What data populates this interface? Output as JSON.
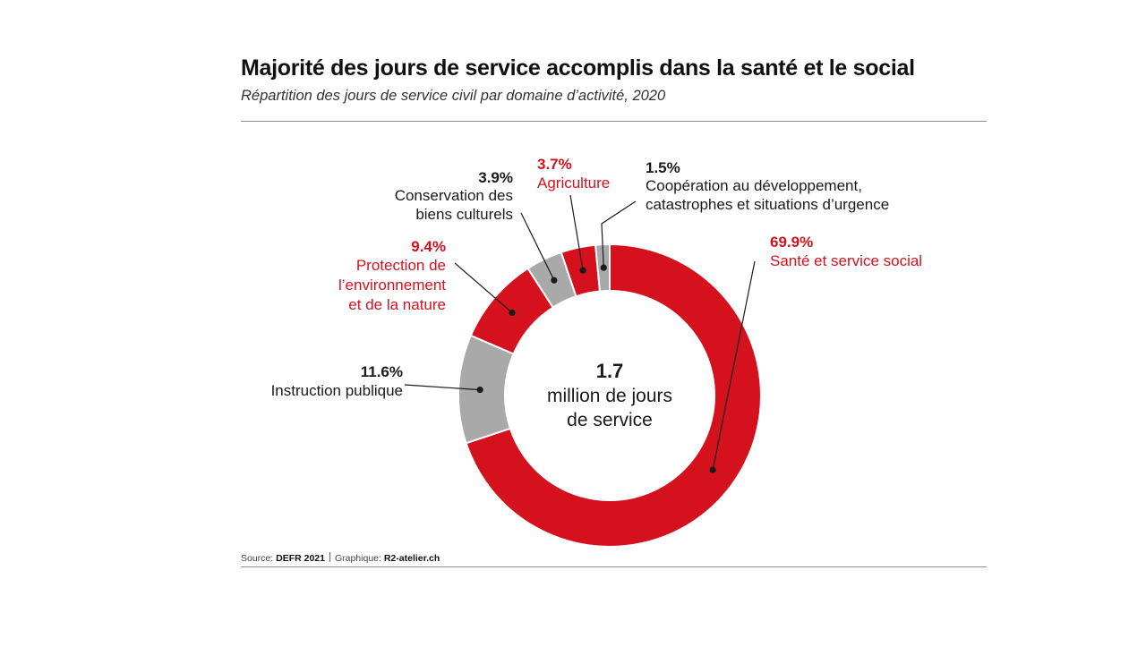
{
  "header": {
    "title": "Majorité des jours de service accomplis dans la santé et le social",
    "subtitle": "Répartition des jours de service civil par domaine d’activité, 2020"
  },
  "footer": {
    "source_label": "Source:",
    "source_value": "DEFR 2021",
    "graphic_label": "Graphique:",
    "graphic_value": "R2-atelier.ch"
  },
  "colors": {
    "red": "#d6111e",
    "gray": "#a9a9a9",
    "text_dark": "#1a1a1a",
    "text_red": "#d6111e"
  },
  "chart_data": {
    "type": "pie",
    "variant": "donut",
    "center_label": {
      "value": "1.7",
      "line1": "million de jours",
      "line2": "de service"
    },
    "start": "top, clockwise",
    "slices": [
      {
        "pct_label": "69.9%",
        "value": 69.9,
        "label_lines": [
          "Santé et service social"
        ],
        "color": "red"
      },
      {
        "pct_label": "11.6%",
        "value": 11.6,
        "label_lines": [
          "Instruction publique"
        ],
        "color": "gray"
      },
      {
        "pct_label": "9.4%",
        "value": 9.4,
        "label_lines": [
          "Protection de",
          "l’environnement",
          "et de la nature"
        ],
        "color": "red"
      },
      {
        "pct_label": "3.9%",
        "value": 3.9,
        "label_lines": [
          "Conservation des",
          "biens culturels"
        ],
        "color": "gray"
      },
      {
        "pct_label": "3.7%",
        "value": 3.7,
        "label_lines": [
          "Agriculture"
        ],
        "color": "red"
      },
      {
        "pct_label": "1.5%",
        "value": 1.5,
        "label_lines": [
          "Coopération au développement,",
          "catastrophes et situations d’urgence"
        ],
        "color": "gray"
      }
    ]
  }
}
